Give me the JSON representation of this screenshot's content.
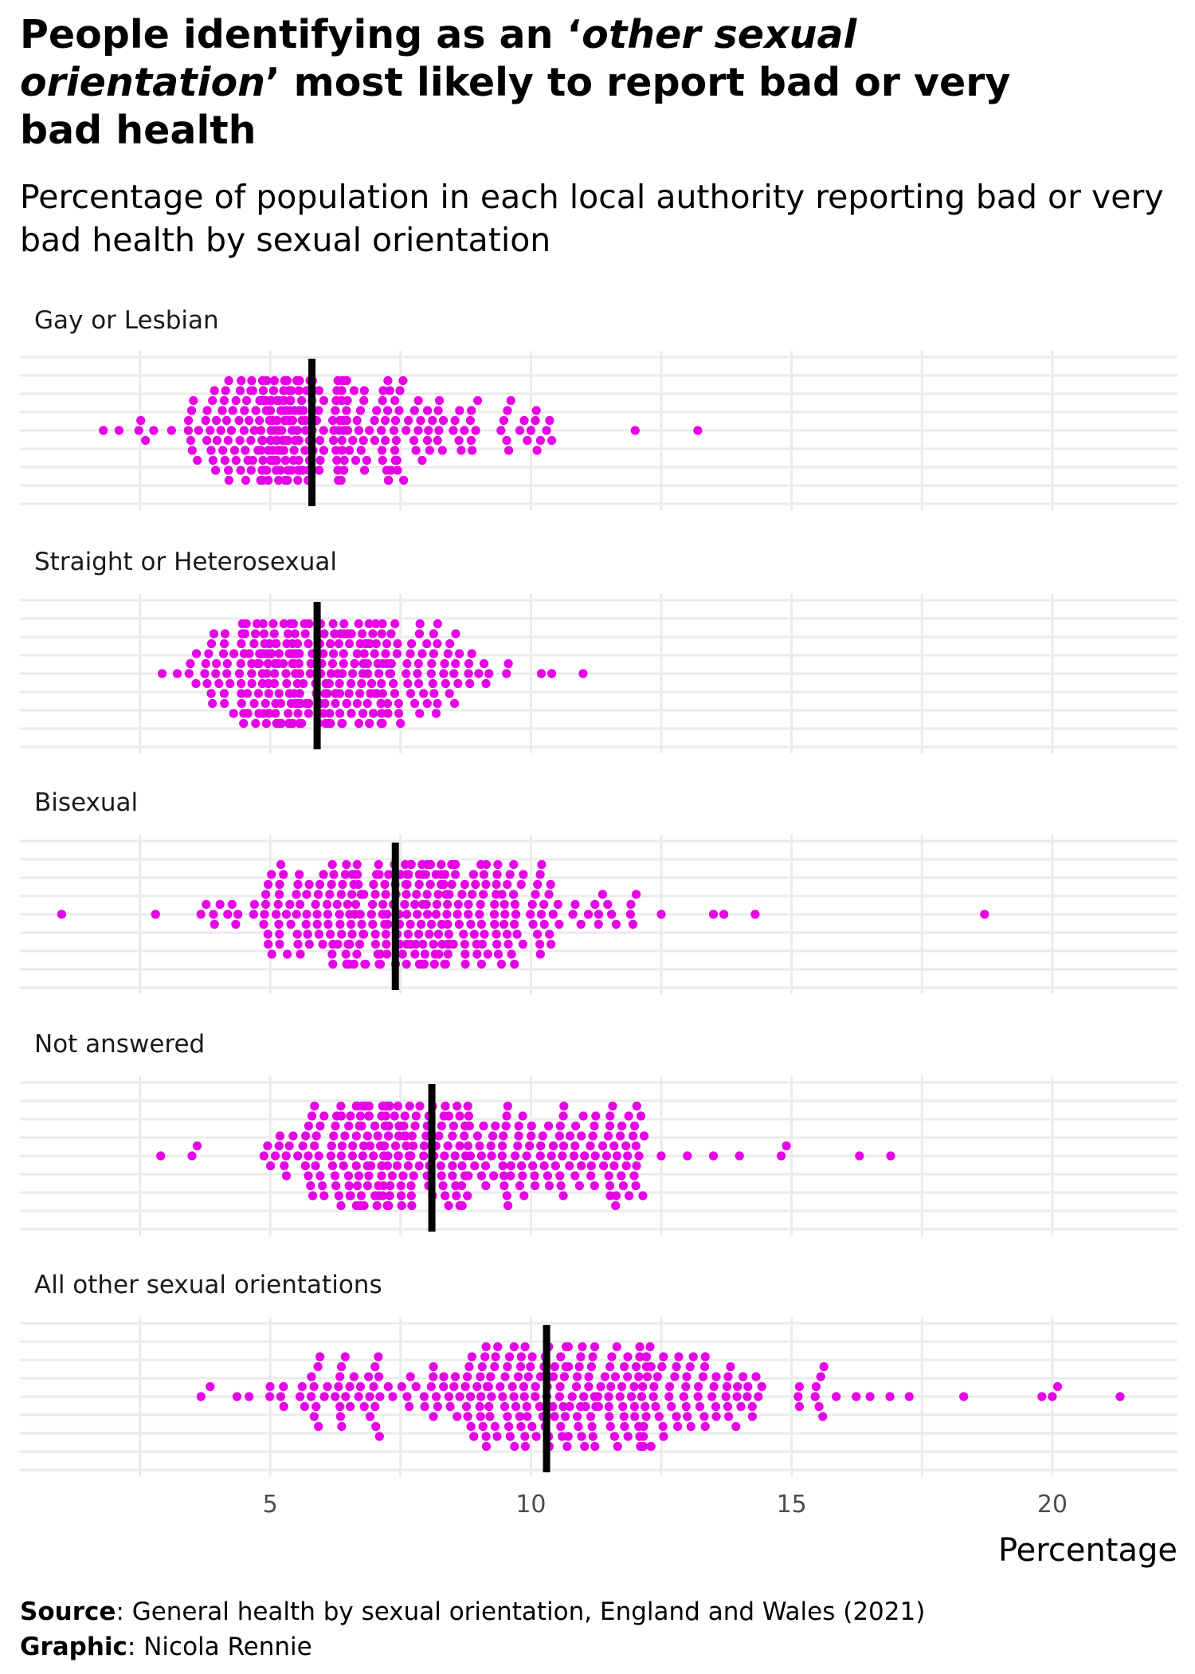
{
  "title": {
    "line1_pre": "People identifying as an ‘",
    "line1_em": "other sexual",
    "line2_em": "orientation",
    "line2_post": "’ most likely to report bad or very",
    "line3": "bad health"
  },
  "subtitle": "Percentage of population in each local authority reporting bad or very bad health by sexual orientation",
  "caption": {
    "source_label": "Source",
    "source_text": ": General health by sexual orientation, England and Wales (2021)",
    "graphic_label": "Graphic",
    "graphic_text": ": Nicola Rennie"
  },
  "colors": {
    "point": "#e600e6",
    "median": "#000000",
    "grid": "#ebebeb"
  },
  "chart_data": {
    "type": "scatter",
    "subtype": "beeswarm",
    "xlabel": "Percentage",
    "xlim": [
      0.2,
      22.4
    ],
    "xticks": [
      5,
      10,
      15,
      20
    ],
    "minor_gridlines": [
      2.5,
      7.5,
      12.5,
      17.5
    ],
    "median_marker": "vertical black line",
    "series": [
      {
        "name": "Gay or Lesbian",
        "median": 5.8,
        "mode": 5.6,
        "q_low": 4.7,
        "q_high": 7.3,
        "min": 1.8,
        "max": 10.4,
        "outliers": [
          1.8,
          2.1,
          10.0,
          10.3,
          10.4,
          12.0,
          13.2
        ]
      },
      {
        "name": "Straight or Heterosexual",
        "median": 5.9,
        "mode": 5.8,
        "q_low": 4.9,
        "q_high": 7.2,
        "min": 2.9,
        "max": 9.6,
        "outliers": [
          10.2,
          10.4,
          11.0
        ]
      },
      {
        "name": "Bisexual",
        "median": 7.4,
        "mode": 7.8,
        "q_low": 6.3,
        "q_high": 9.1,
        "min": 3.4,
        "max": 12.2,
        "outliers": [
          1.0,
          2.8,
          12.5,
          13.5,
          13.7,
          14.3,
          18.7
        ]
      },
      {
        "name": "Not answered",
        "median": 8.1,
        "mode": 7.8,
        "q_low": 6.8,
        "q_high": 10.1,
        "min": 4.6,
        "max": 12.2,
        "outliers": [
          2.9,
          3.5,
          3.6,
          12.5,
          13.0,
          13.5,
          14.0,
          14.8,
          14.9,
          16.3,
          16.9
        ]
      },
      {
        "name": "All other sexual orientations",
        "median": 10.3,
        "mode": 10.5,
        "q_low": 8.2,
        "q_high": 12.5,
        "min": 3.2,
        "max": 17.5,
        "outliers": [
          18.3,
          19.8,
          20.0,
          20.1,
          21.3
        ]
      }
    ]
  }
}
